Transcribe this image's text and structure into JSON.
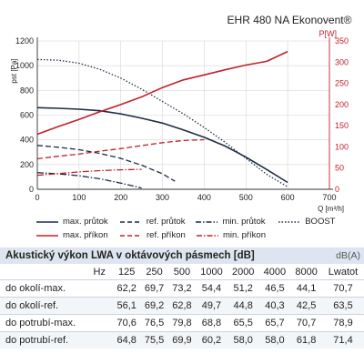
{
  "chart_data": {
    "type": "line",
    "title": "EHR 480 NA Ekonovent®",
    "xlabel": "Q [m³/h]",
    "ylabel_left": "pst [Pa]",
    "ylabel_right": "P[W]",
    "xlim": [
      0,
      700
    ],
    "ylim_left": [
      0,
      1200
    ],
    "ylim_right": [
      0,
      350
    ],
    "x_ticks": [
      0,
      100,
      200,
      300,
      400,
      500,
      600,
      700
    ],
    "y_ticks_left": [
      0,
      200,
      400,
      600,
      800,
      1000,
      1200
    ],
    "y_ticks_right": [
      0,
      50,
      100,
      150,
      200,
      250,
      300,
      350
    ],
    "colors": {
      "pressure": "#1d2d44",
      "power": "#c0222c"
    },
    "series": [
      {
        "name": "max. průtok",
        "axis": "left",
        "style": "solid",
        "color": "#1d2d44",
        "x": [
          0,
          50,
          100,
          150,
          200,
          250,
          300,
          350,
          400,
          450,
          500,
          550,
          600
        ],
        "y": [
          660,
          655,
          648,
          635,
          610,
          575,
          535,
          480,
          420,
          350,
          260,
          160,
          55
        ]
      },
      {
        "name": "ref. průtok",
        "axis": "left",
        "style": "dashed",
        "color": "#1d2d44",
        "x": [
          0,
          50,
          100,
          150,
          200,
          250,
          300,
          330
        ],
        "y": [
          355,
          340,
          320,
          290,
          250,
          195,
          125,
          65
        ]
      },
      {
        "name": "min. průtok",
        "axis": "left",
        "style": "dashdot",
        "color": "#1d2d44",
        "x": [
          0,
          50,
          100,
          150,
          200,
          250
        ],
        "y": [
          135,
          125,
          110,
          85,
          50,
          10
        ]
      },
      {
        "name": "BOOST",
        "axis": "left",
        "style": "dotted",
        "color": "#1d2d44",
        "x": [
          0,
          50,
          100,
          150,
          200,
          250,
          300,
          350,
          400,
          450,
          500,
          550,
          600
        ],
        "y": [
          1050,
          1045,
          1020,
          970,
          900,
          810,
          710,
          610,
          500,
          380,
          250,
          120,
          20
        ]
      },
      {
        "name": "max. příkon",
        "axis": "right",
        "style": "solid",
        "color": "#c0222c",
        "x": [
          0,
          50,
          100,
          150,
          200,
          250,
          300,
          350,
          400,
          450,
          500,
          550,
          600
        ],
        "y": [
          130,
          148,
          165,
          183,
          200,
          218,
          240,
          258,
          270,
          282,
          293,
          302,
          325
        ]
      },
      {
        "name": "ref. příkon",
        "axis": "right",
        "style": "dashed",
        "color": "#c0222c",
        "x": [
          0,
          50,
          100,
          150,
          200,
          250,
          300,
          350,
          400
        ],
        "y": [
          72,
          78,
          83,
          90,
          96,
          103,
          110,
          115,
          117
        ]
      },
      {
        "name": "min. příkon",
        "axis": "right",
        "style": "dashdot",
        "color": "#c0222c",
        "x": [
          0,
          50,
          100,
          150,
          200,
          250
        ],
        "y": [
          33,
          37,
          41,
          44,
          46,
          47
        ]
      }
    ]
  },
  "legend": {
    "row1": [
      "max. průtok",
      "ref. průtok",
      "min. průtok",
      "BOOST"
    ],
    "row2": [
      "max. příkon",
      "ref. příkon",
      "min. příkon"
    ]
  },
  "table": {
    "title": "Akustický výkon LWA v oktávových pásmech [dB]",
    "unit": "dB(A)",
    "hz_label": "Hz",
    "headers": [
      "125",
      "250",
      "500",
      "1000",
      "2000",
      "4000",
      "8000",
      "Lwatot"
    ],
    "rows": [
      {
        "label": "do okolí-max.",
        "values": [
          "62,2",
          "69,7",
          "73,2",
          "54,4",
          "51,2",
          "46,5",
          "44,1",
          "70,7"
        ]
      },
      {
        "label": "do okolí-ref.",
        "values": [
          "56,1",
          "69,2",
          "62,8",
          "49,7",
          "44,8",
          "40,3",
          "42,5",
          "63,5"
        ]
      },
      {
        "label": "do potrubí-max.",
        "values": [
          "70,6",
          "76,5",
          "79,8",
          "68,8",
          "65,5",
          "65,7",
          "70,7",
          "78,9"
        ]
      },
      {
        "label": "do potrubí-ref.",
        "values": [
          "64,8",
          "75,5",
          "69,9",
          "60,2",
          "58,0",
          "58,0",
          "61,8",
          "71,4"
        ]
      }
    ]
  }
}
